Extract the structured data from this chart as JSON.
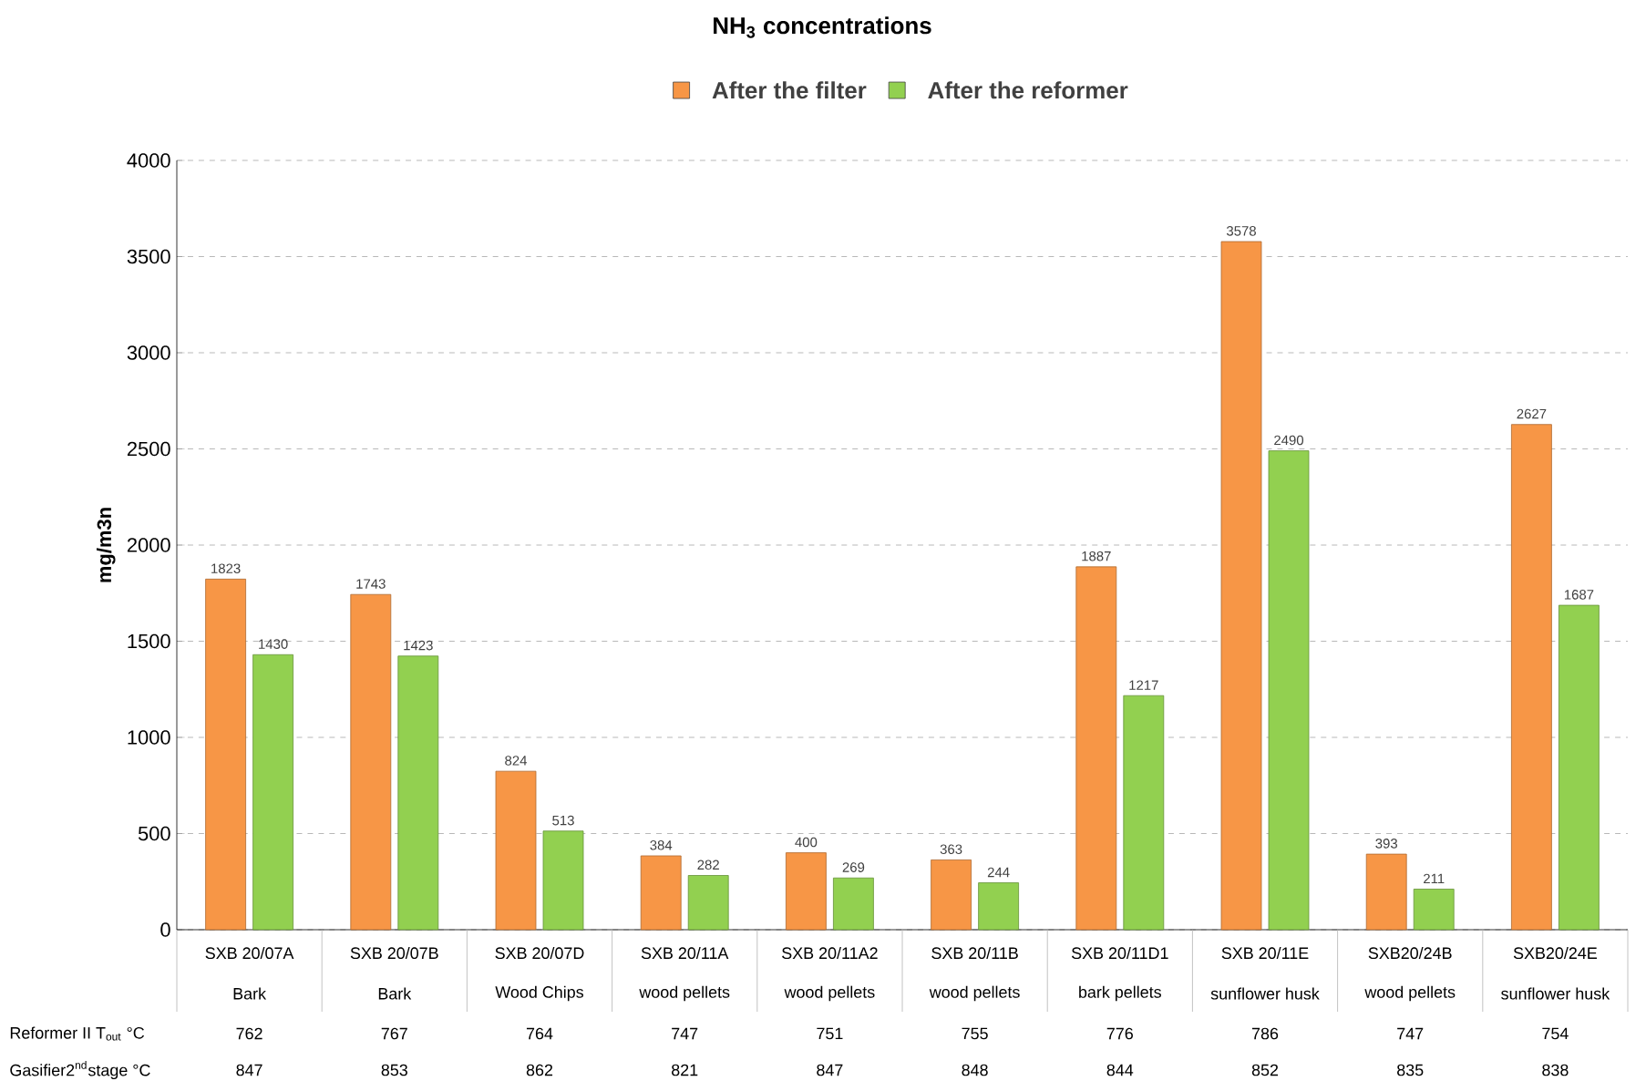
{
  "chart_data": {
    "type": "bar",
    "title": "NH$_{3}$ concentrations",
    "ylabel": "mg/m3n",
    "categories": [
      "SXB 20/07A",
      "SXB 20/07B",
      "SXB 20/07D",
      "SXB 20/11A",
      "SXB 20/11A2",
      "SXB 20/11B",
      "SXB 20/11D1",
      "SXB 20/11E",
      "SXB20/24B",
      "SXB20/24E"
    ],
    "series": [
      {
        "name": "After the filter",
        "color": "#f79646",
        "values": [
          1823,
          1743,
          824,
          384,
          400,
          363,
          1887,
          3578,
          393,
          2627
        ]
      },
      {
        "name": "After the reformer",
        "color": "#92d050",
        "values": [
          1430,
          1423,
          513,
          282,
          269,
          244,
          1217,
          2490,
          211,
          1687
        ]
      }
    ],
    "ylim": [
      0,
      4000
    ],
    "yticks": [
      0,
      500,
      1000,
      1500,
      2000,
      2500,
      3000,
      3500,
      4000
    ],
    "grid": "y",
    "legend": "top",
    "data_labels": true,
    "annotations": [
      "Bark",
      "Bark",
      "Wood Chips",
      "wood pellets",
      "wood pellets",
      "wood pellets",
      "bark pellets",
      "sunflower husk",
      "wood pellets",
      "sunflower husk",
      "Reformer II T$_{out}$ °C",
      "762",
      "767",
      "764",
      "747",
      "751",
      "755",
      "776",
      "786",
      "747",
      "754",
      "Gasifier2$^{nd}$stage °C",
      "847",
      "853",
      "862",
      "821",
      "847",
      "848",
      "844",
      "852",
      "835",
      "838"
    ]
  }
}
